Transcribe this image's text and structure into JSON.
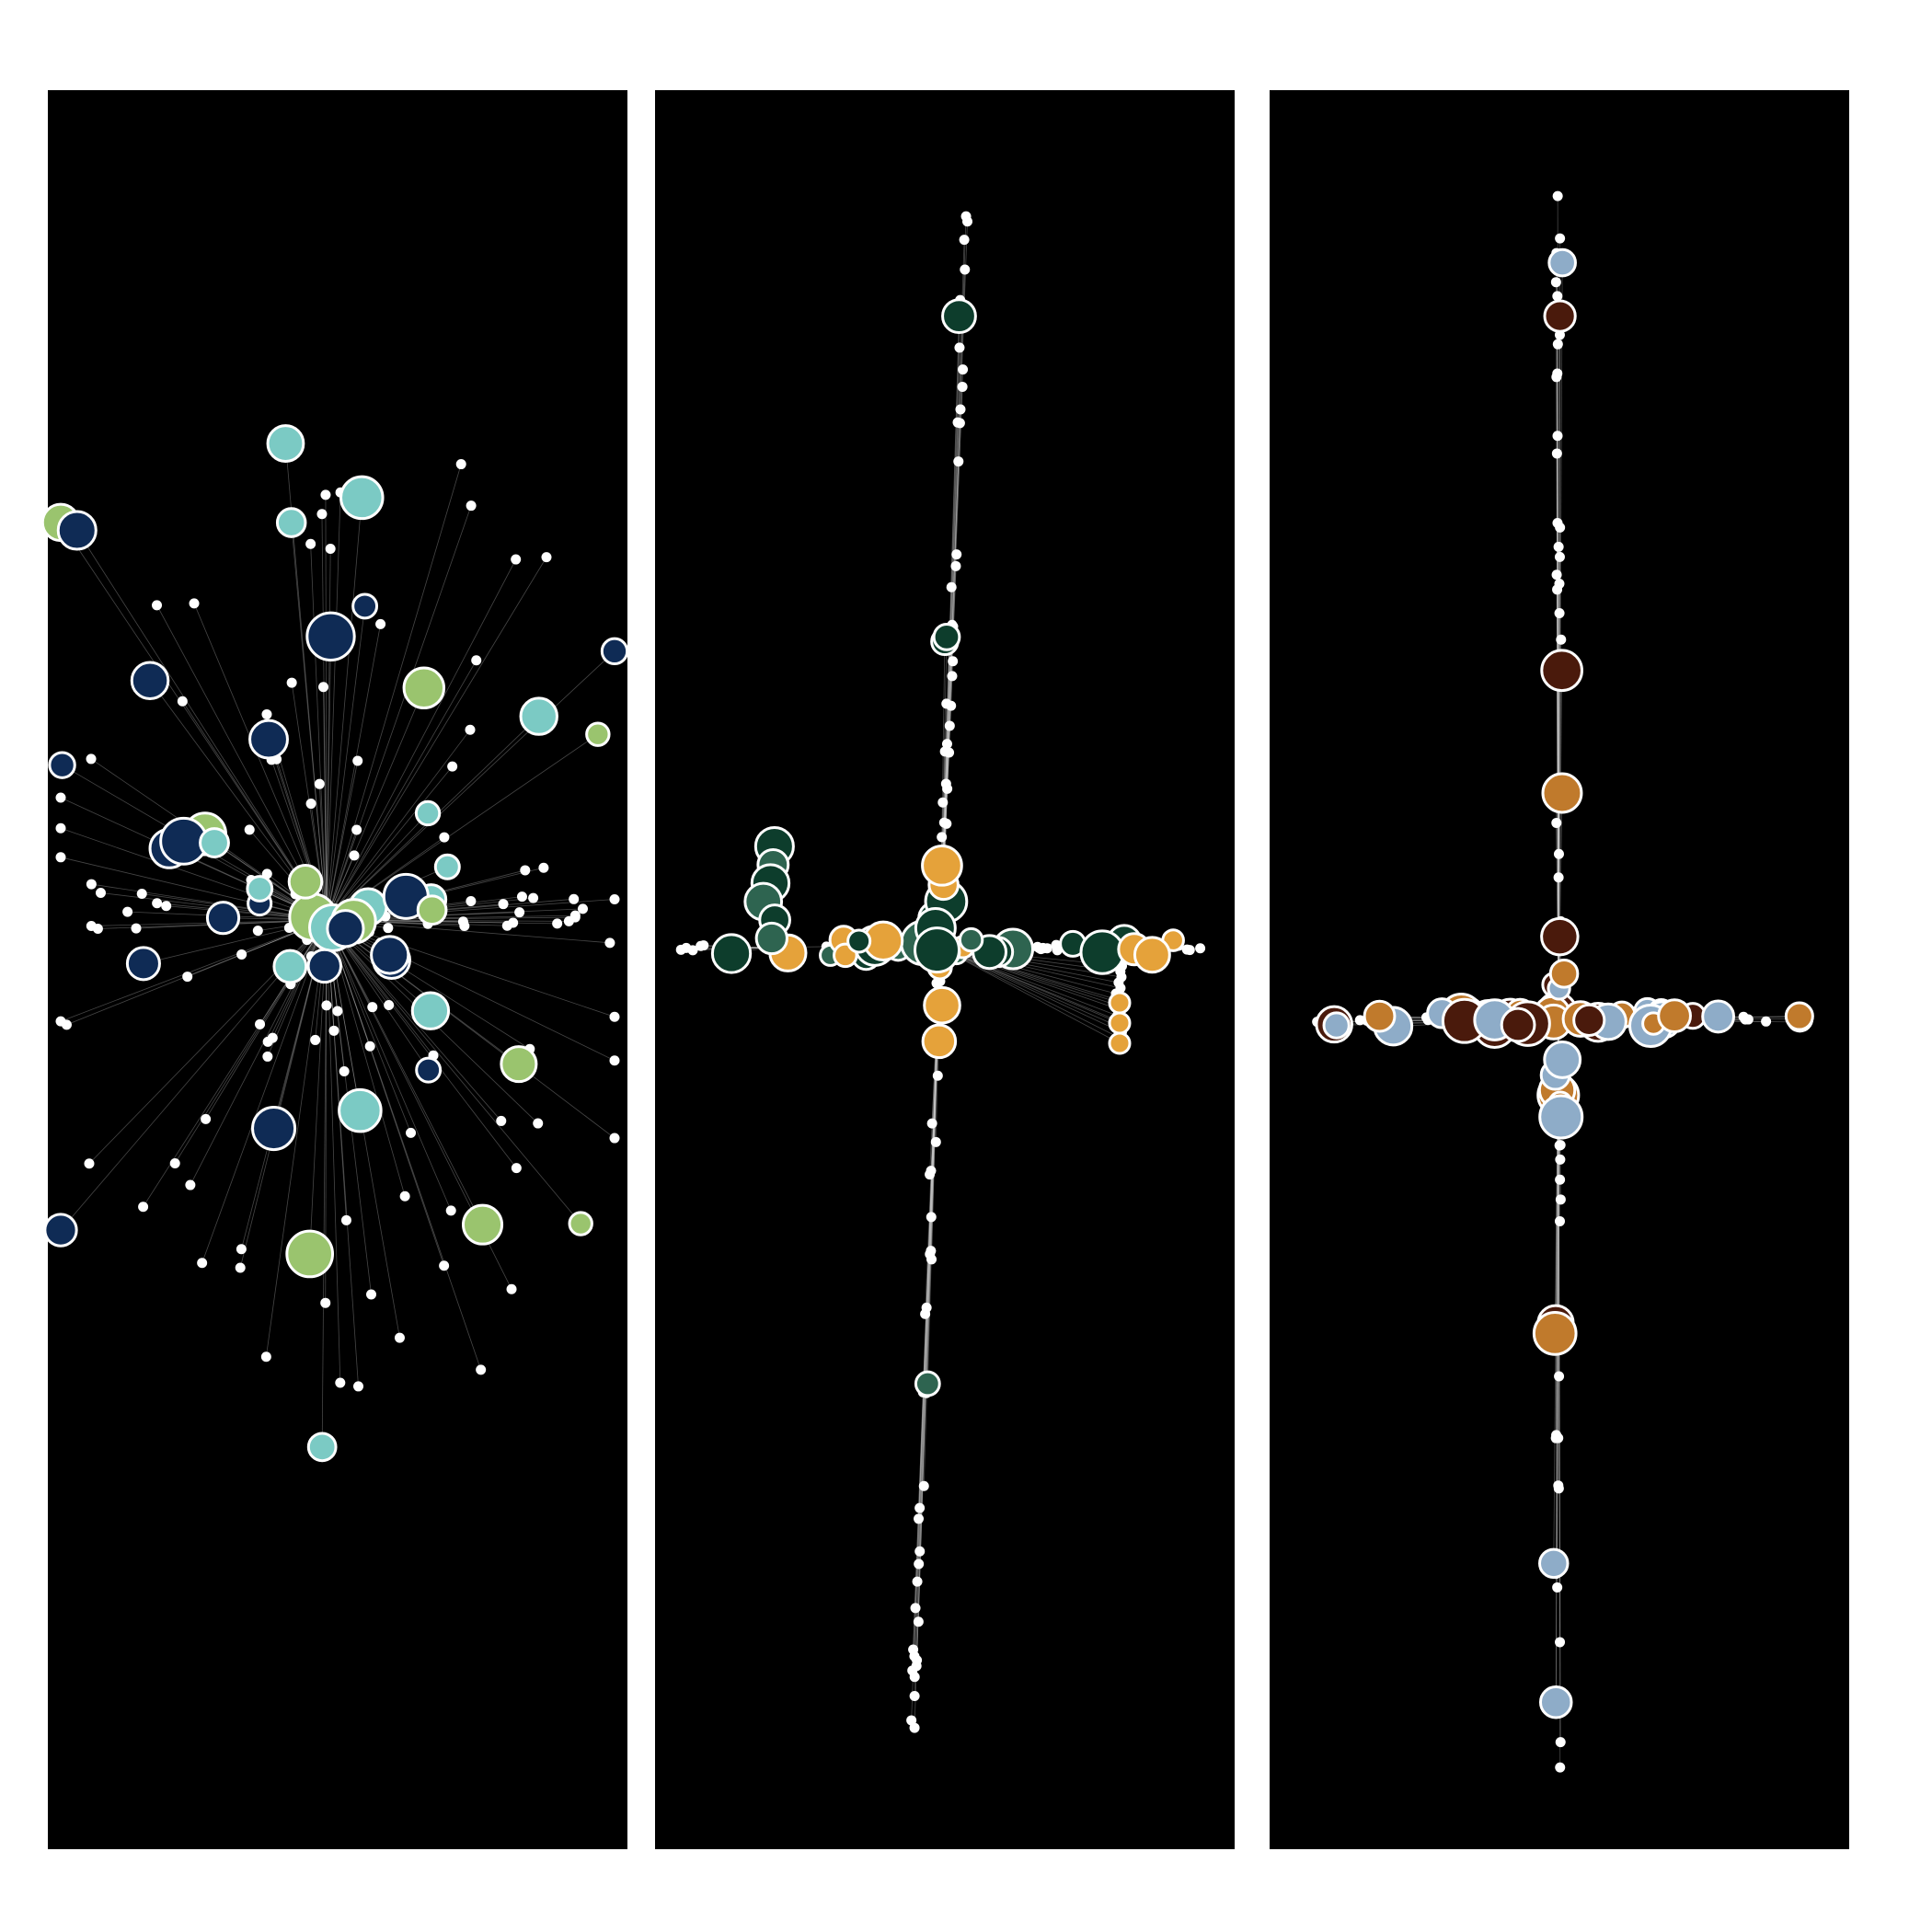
{
  "figure": {
    "background": "#ffffff",
    "panel_background": "#000000",
    "edge_color": "#c8c8c8",
    "node_outline": "#ffffff",
    "small_node_color": "#ffffff"
  },
  "panels": [
    {
      "id": "panel-1",
      "layout": "radial",
      "palette": [
        "#0f2b55",
        "#9ac46e",
        "#7bcac4"
      ],
      "seed": 17,
      "n_small": 95,
      "n_colored": 48
    },
    {
      "id": "panel-2",
      "layout": "cross-left",
      "palette": [
        "#0d3d2c",
        "#2e6450",
        "#e5a23a"
      ],
      "seed": 29,
      "n_small": 130,
      "n_colored": 40
    },
    {
      "id": "panel-3",
      "layout": "cross",
      "palette": [
        "#c07a2c",
        "#8eacc8",
        "#4a1a0c"
      ],
      "seed": 43,
      "n_small": 90,
      "n_colored": 55
    }
  ]
}
